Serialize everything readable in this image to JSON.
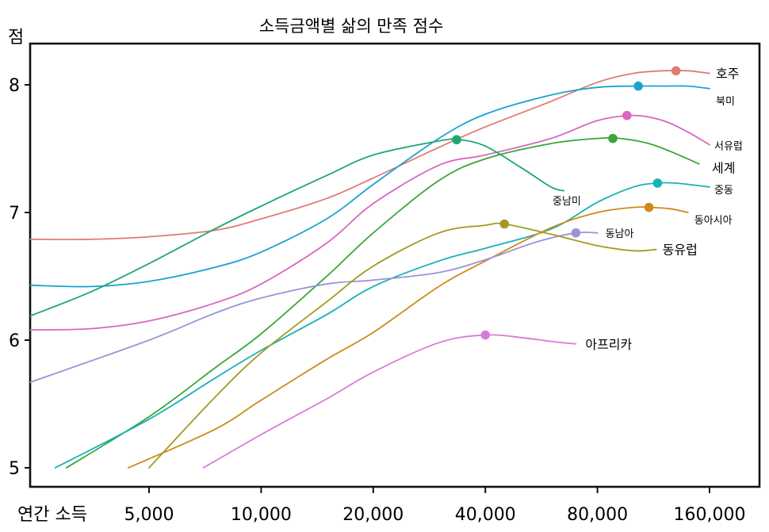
{
  "chart_data": {
    "type": "line",
    "title": "소득금액별 삶의 만족 점수",
    "xlabel": "연간 소득",
    "ylabel": "점",
    "x_scale": "log",
    "x_ticks": [
      5000,
      10000,
      20000,
      40000,
      80000,
      160000
    ],
    "x_tick_labels": [
      "5,000",
      "10,000",
      "20,000",
      "40,000",
      "80,000",
      "160,000"
    ],
    "y_ticks": [
      5,
      6,
      7,
      8
    ],
    "y_tick_labels": [
      "5",
      "6",
      "7",
      "8"
    ],
    "xlim": [
      2250,
      230000
    ],
    "ylim": [
      4.85,
      8.3
    ],
    "series": [
      {
        "name": "호주",
        "color": "#e07c72",
        "label_size": "big",
        "x": [
          2400,
          3500,
          5000,
          7500,
          10000,
          15000,
          20000,
          30000,
          40000,
          60000,
          80000,
          100000,
          120000,
          140000,
          160000
        ],
        "y": [
          6.79,
          6.79,
          6.81,
          6.86,
          6.95,
          7.11,
          7.27,
          7.51,
          7.67,
          7.87,
          8.02,
          8.09,
          8.11,
          8.11,
          8.09
        ],
        "peak": [
          130000,
          8.11
        ]
      },
      {
        "name": "북미",
        "color": "#1aa3cf",
        "label_size": "small",
        "x": [
          2400,
          3500,
          5000,
          7500,
          10000,
          15000,
          20000,
          30000,
          40000,
          60000,
          80000,
          100000,
          120000,
          140000,
          160000
        ],
        "y": [
          6.43,
          6.42,
          6.46,
          6.57,
          6.69,
          6.95,
          7.22,
          7.58,
          7.77,
          7.92,
          7.98,
          7.99,
          7.99,
          7.99,
          7.97
        ],
        "peak": [
          103000,
          7.99
        ]
      },
      {
        "name": "서유럽",
        "color": "#d966c0",
        "label_size": "small",
        "x": [
          2400,
          3500,
          5000,
          7500,
          10000,
          15000,
          20000,
          30000,
          40000,
          60000,
          80000,
          100000,
          120000,
          140000,
          160000
        ],
        "y": [
          6.08,
          6.09,
          6.15,
          6.29,
          6.44,
          6.76,
          7.07,
          7.37,
          7.45,
          7.58,
          7.72,
          7.76,
          7.72,
          7.63,
          7.53
        ],
        "peak": [
          96000,
          7.76
        ]
      },
      {
        "name": "세계",
        "color": "#3ba63a",
        "label_size": "big",
        "x": [
          3000,
          5000,
          7500,
          10000,
          15000,
          20000,
          30000,
          40000,
          60000,
          80000,
          92000,
          110000,
          130000,
          150000
        ],
        "y": [
          5.0,
          5.4,
          5.78,
          6.05,
          6.5,
          6.84,
          7.25,
          7.42,
          7.54,
          7.58,
          7.58,
          7.54,
          7.46,
          7.38
        ],
        "peak": [
          88000,
          7.58
        ]
      },
      {
        "name": "중남미",
        "color": "#1fa771",
        "label_size": "small",
        "x": [
          2400,
          3500,
          5000,
          7500,
          10000,
          15000,
          20000,
          30000,
          34000,
          40000,
          50000,
          60000,
          65000
        ],
        "y": [
          6.19,
          6.38,
          6.6,
          6.87,
          7.05,
          7.29,
          7.45,
          7.56,
          7.57,
          7.52,
          7.35,
          7.2,
          7.17
        ],
        "peak": [
          33500,
          7.57
        ]
      },
      {
        "name": "중동",
        "color": "#17b2b7",
        "label_size": "small",
        "x": [
          2800,
          5000,
          7500,
          10000,
          15000,
          20000,
          30000,
          40000,
          60000,
          80000,
          100000,
          115000,
          130000,
          160000
        ],
        "y": [
          5.0,
          5.38,
          5.7,
          5.92,
          6.2,
          6.42,
          6.62,
          6.72,
          6.87,
          7.08,
          7.2,
          7.23,
          7.23,
          7.2
        ],
        "peak": [
          116000,
          7.23
        ]
      },
      {
        "name": "동아시아",
        "color": "#cf8a1a",
        "label_size": "small",
        "x": [
          4400,
          7500,
          10000,
          15000,
          20000,
          30000,
          40000,
          60000,
          80000,
          100000,
          110000,
          125000,
          140000
        ],
        "y": [
          5.0,
          5.3,
          5.53,
          5.85,
          6.06,
          6.42,
          6.62,
          6.88,
          7.0,
          7.04,
          7.04,
          7.03,
          7.0
        ],
        "peak": [
          110000,
          7.04
        ]
      },
      {
        "name": "동남아",
        "color": "#9b93d6",
        "label_size": "small",
        "x": [
          2400,
          5000,
          7500,
          10000,
          15000,
          20000,
          30000,
          40000,
          55000,
          70000,
          80000
        ],
        "y": [
          5.67,
          6.0,
          6.21,
          6.33,
          6.44,
          6.47,
          6.53,
          6.63,
          6.77,
          6.84,
          6.84
        ],
        "peak": [
          70000,
          6.84
        ]
      },
      {
        "name": "동유럽",
        "color": "#a59a1f",
        "label_size": "big",
        "x": [
          5000,
          7500,
          10000,
          15000,
          20000,
          30000,
          40000,
          45000,
          60000,
          80000,
          100000,
          115000
        ],
        "y": [
          5.0,
          5.55,
          5.9,
          6.3,
          6.58,
          6.84,
          6.9,
          6.91,
          6.83,
          6.74,
          6.7,
          6.71
        ],
        "peak": [
          45000,
          6.91
        ]
      },
      {
        "name": "아프리카",
        "color": "#d97bd6",
        "label_size": "big",
        "x": [
          7000,
          10000,
          15000,
          20000,
          30000,
          40000,
          50000,
          60000,
          70000
        ],
        "y": [
          5.0,
          5.26,
          5.54,
          5.75,
          5.98,
          6.04,
          6.02,
          5.99,
          5.97
        ],
        "peak": [
          40000,
          6.04
        ]
      }
    ]
  }
}
